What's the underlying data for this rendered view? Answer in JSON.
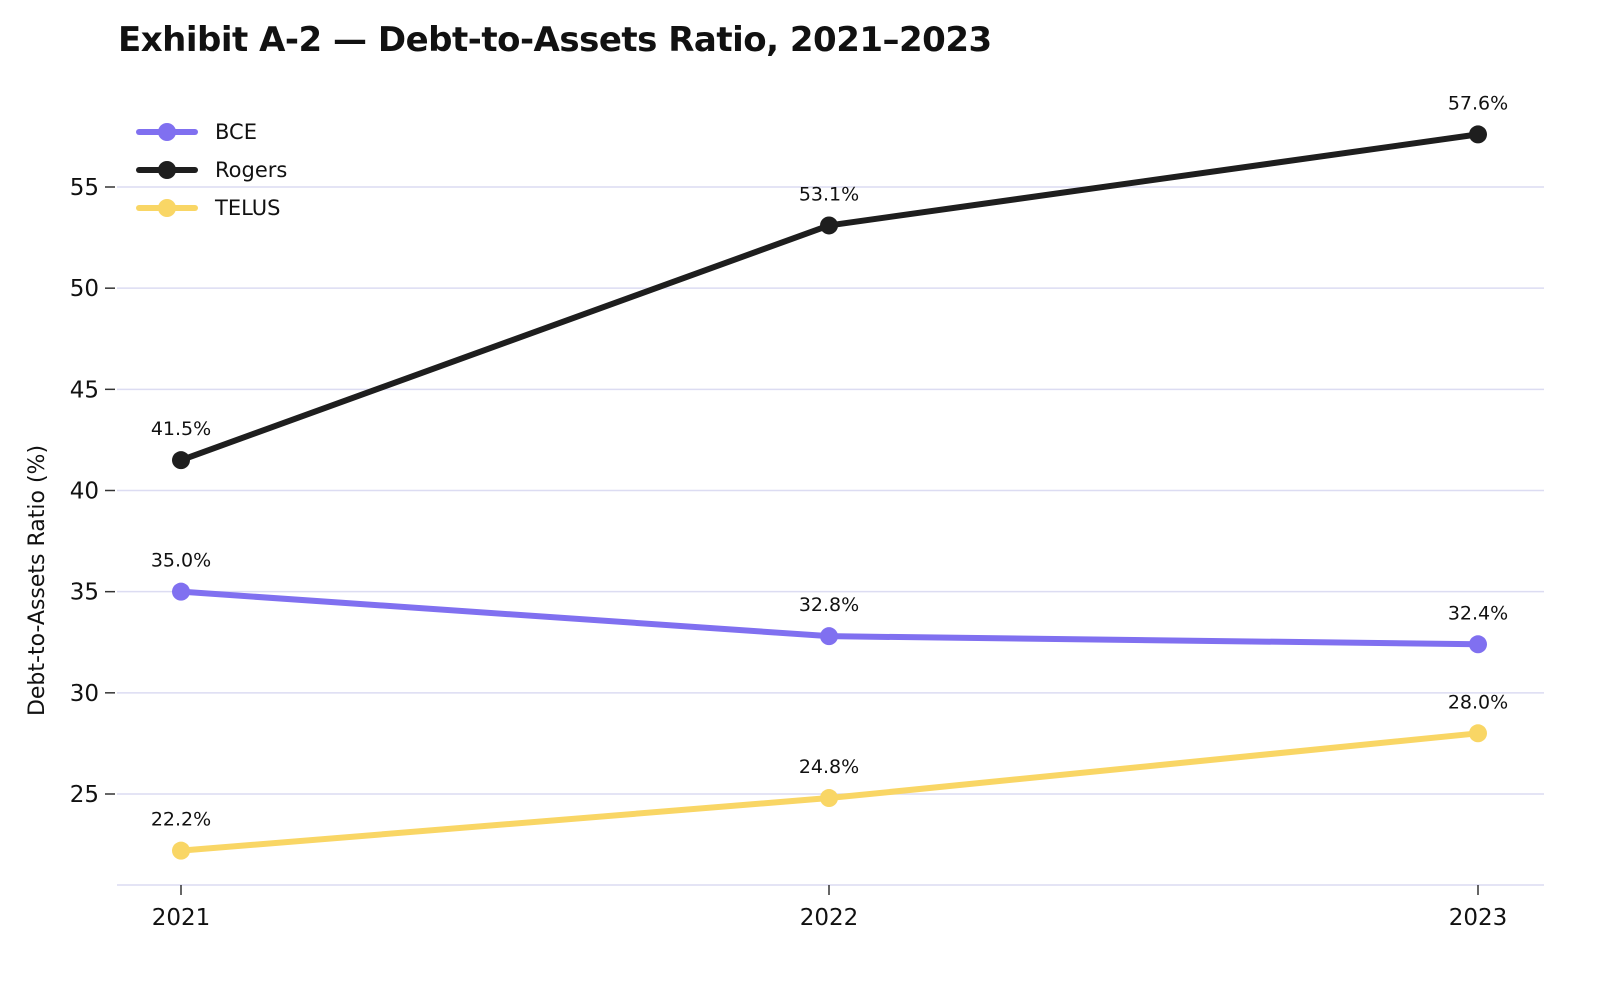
{
  "chart_data": {
    "type": "line",
    "title": "Exhibit A-2 — Debt-to-Assets Ratio, 2021–2023",
    "xlabel": "",
    "ylabel": "Debt-to-Assets Ratio (%)",
    "categories": [
      "2021",
      "2022",
      "2023"
    ],
    "yticks": [
      "25",
      "30",
      "35",
      "40",
      "45",
      "50",
      "55"
    ],
    "ylim": [
      19.5,
      60
    ],
    "grid": "horizontal",
    "legend_position": "top-left",
    "series": [
      {
        "name": "BCE",
        "color": "#8070F0",
        "values": [
          35.0,
          32.8,
          32.4
        ],
        "labels": [
          "35.0%",
          "32.8%",
          "32.4%"
        ]
      },
      {
        "name": "Rogers",
        "color": "#1E1E1E",
        "values": [
          41.5,
          53.1,
          57.6
        ],
        "labels": [
          "41.5%",
          "53.1%",
          "57.6%"
        ]
      },
      {
        "name": "TELUS",
        "color": "#F9D665",
        "values": [
          22.2,
          24.8,
          28.0
        ],
        "labels": [
          "22.2%",
          "24.8%",
          "28.0%"
        ]
      }
    ]
  }
}
